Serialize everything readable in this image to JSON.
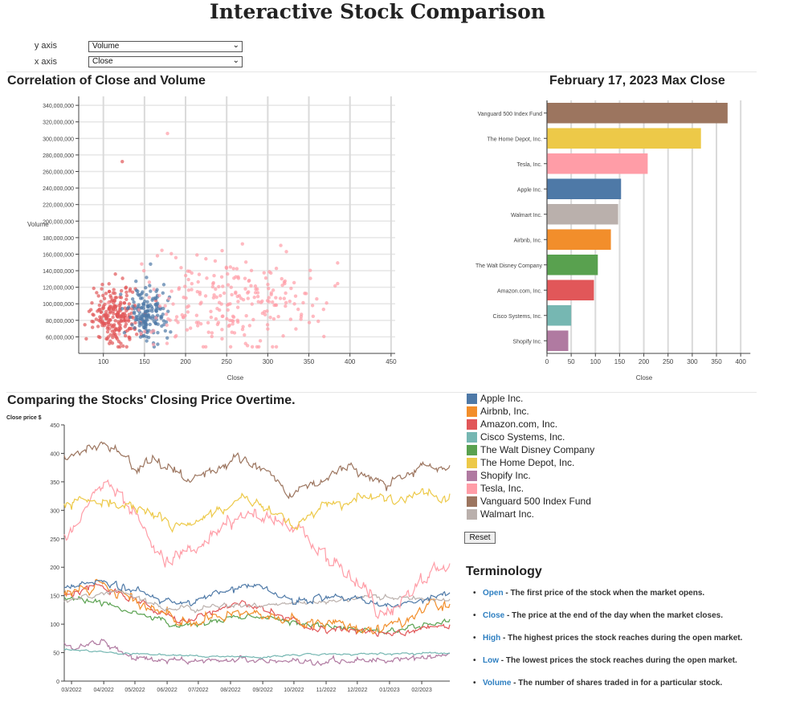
{
  "page": {
    "title": "Interactive Stock Comparison"
  },
  "controls": {
    "y_label": "y axis",
    "y_value": "Volume",
    "x_label": "x axis",
    "x_value": "Close"
  },
  "reset_label": "Reset",
  "terminology": {
    "title": "Terminology",
    "items": [
      {
        "term": "Open",
        "desc": " - The first price of the stock when the market opens."
      },
      {
        "term": "Close",
        "desc": " - The price at the end of the day when the market closes."
      },
      {
        "term": "High",
        "desc": " - The highest prices the stock reaches during the open market."
      },
      {
        "term": "Low",
        "desc": " - The lowest prices the stock reaches during the open market."
      },
      {
        "term": "Volume",
        "desc": " - The number of shares traded in for a particular stock."
      }
    ]
  },
  "legend": [
    {
      "name": "Apple Inc.",
      "color": "#4e79a7"
    },
    {
      "name": "Airbnb, Inc.",
      "color": "#f28e2b"
    },
    {
      "name": "Amazon.com, Inc.",
      "color": "#e15759"
    },
    {
      "name": "Cisco Systems, Inc.",
      "color": "#76b7b2"
    },
    {
      "name": "The Walt Disney Company",
      "color": "#59a14f"
    },
    {
      "name": "The Home Depot, Inc.",
      "color": "#edc948"
    },
    {
      "name": "Shopify Inc.",
      "color": "#b07aa1"
    },
    {
      "name": "Tesla, Inc.",
      "color": "#ff9da7"
    },
    {
      "name": "Vanguard 500 Index Fund",
      "color": "#9c755f"
    },
    {
      "name": "Walmart Inc.",
      "color": "#bab0ac"
    }
  ],
  "chart_data": [
    {
      "type": "scatter",
      "title": "Correlation of Close and Volume",
      "xlabel": "Close",
      "ylabel": "Volume",
      "xlim": [
        70,
        455
      ],
      "ylim": [
        40000000,
        345000000
      ],
      "xticks": [
        100,
        150,
        200,
        250,
        300,
        350,
        400,
        450
      ],
      "yticks": [
        60000000,
        80000000,
        100000000,
        120000000,
        140000000,
        160000000,
        180000000,
        200000000,
        220000000,
        240000000,
        260000000,
        280000000,
        300000000,
        320000000,
        340000000
      ],
      "grid": true,
      "clusters": [
        {
          "series": "Amazon.com, Inc.",
          "color": "#e15759",
          "n": 230,
          "x_mean": 115,
          "x_sd": 14,
          "y_mean": 80000000,
          "y_sd": 22000000
        },
        {
          "series": "Apple Inc.",
          "color": "#4e79a7",
          "n": 170,
          "x_mean": 155,
          "x_sd": 12,
          "y_mean": 85000000,
          "y_sd": 20000000
        },
        {
          "series": "Tesla, Inc.",
          "color": "#ff9da7",
          "n": 250,
          "x_mean": 255,
          "x_sd": 55,
          "y_mean": 95000000,
          "y_sd": 35000000
        }
      ],
      "notable_points": [
        {
          "series": "Tesla, Inc.",
          "x": 178,
          "y": 306000000
        },
        {
          "series": "Amazon.com, Inc.",
          "x": 123,
          "y": 272000000
        }
      ]
    },
    {
      "type": "bar",
      "orientation": "horizontal",
      "title": "February 17, 2023 Max Close",
      "xlabel": "Close",
      "xlim": [
        0,
        420
      ],
      "xticks": [
        0,
        50,
        100,
        150,
        200,
        250,
        300,
        350,
        400
      ],
      "categories": [
        "Vanguard 500 Index Fund",
        "The Home Depot, Inc.",
        "Tesla, Inc.",
        "Apple Inc.",
        "Walmart Inc.",
        "Airbnb, Inc.",
        "The Walt Disney Company",
        "Amazon.com, Inc.",
        "Cisco Systems, Inc.",
        "Shopify Inc."
      ],
      "values": [
        373,
        318,
        208,
        153,
        147,
        132,
        105,
        97,
        50,
        44
      ],
      "colors": [
        "#9c755f",
        "#edc948",
        "#ff9da7",
        "#4e79a7",
        "#bab0ac",
        "#f28e2b",
        "#59a14f",
        "#e15759",
        "#76b7b2",
        "#b07aa1"
      ]
    },
    {
      "type": "line",
      "title": "Comparing the Stocks' Closing Price Overtime.",
      "ylabel": "Close price $",
      "ylim": [
        0,
        450
      ],
      "yticks": [
        0,
        50,
        100,
        150,
        200,
        250,
        300,
        350,
        400,
        450
      ],
      "x_ticks": [
        "03/2022",
        "04/2022",
        "05/2022",
        "06/2022",
        "07/2022",
        "08/2022",
        "09/2022",
        "10/2022",
        "11/2022",
        "12/2022",
        "01/2023",
        "02/2023"
      ],
      "x_range": [
        "2022-02-22",
        "2023-02-28"
      ],
      "series": [
        {
          "name": "Vanguard 500 Index Fund",
          "color": "#9c755f",
          "volatility": 4.5,
          "dates": [
            "2022-02-22",
            "2022-04-01",
            "2022-05-01",
            "2022-06-01",
            "2022-06-20",
            "2022-08-15",
            "2022-09-30",
            "2022-11-15",
            "2023-01-01",
            "2023-02-01",
            "2023-02-28"
          ],
          "values": [
            395,
            420,
            380,
            385,
            350,
            395,
            330,
            370,
            350,
            380,
            375
          ]
        },
        {
          "name": "The Home Depot, Inc.",
          "color": "#edc948",
          "volatility": 4.5,
          "dates": [
            "2022-02-22",
            "2022-03-20",
            "2022-04-15",
            "2022-05-15",
            "2022-06-20",
            "2022-08-15",
            "2022-09-30",
            "2022-11-15",
            "2023-01-01",
            "2023-02-01",
            "2023-02-28"
          ],
          "values": [
            310,
            320,
            305,
            295,
            270,
            320,
            275,
            315,
            320,
            330,
            318
          ]
        },
        {
          "name": "Tesla, Inc.",
          "color": "#ff9da7",
          "volatility": 7,
          "dates": [
            "2022-02-22",
            "2022-03-10",
            "2022-04-03",
            "2022-05-01",
            "2022-05-24",
            "2022-07-01",
            "2022-08-16",
            "2022-09-25",
            "2022-10-30",
            "2022-12-01",
            "2022-12-27",
            "2023-01-31",
            "2023-02-28"
          ],
          "values": [
            255,
            285,
            370,
            290,
            215,
            235,
            300,
            285,
            225,
            180,
            115,
            170,
            205
          ]
        },
        {
          "name": "Apple Inc.",
          "color": "#4e79a7",
          "volatility": 2.8,
          "dates": [
            "2022-02-22",
            "2022-04-01",
            "2022-06-15",
            "2022-08-15",
            "2022-10-01",
            "2022-11-15",
            "2023-01-03",
            "2023-02-28"
          ],
          "values": [
            163,
            175,
            133,
            170,
            142,
            150,
            128,
            152
          ]
        },
        {
          "name": "Walmart Inc.",
          "color": "#bab0ac",
          "volatility": 2,
          "dates": [
            "2022-02-22",
            "2022-04-15",
            "2022-06-01",
            "2022-08-01",
            "2022-10-01",
            "2022-12-01",
            "2023-02-28"
          ],
          "values": [
            138,
            158,
            125,
            130,
            135,
            148,
            143
          ]
        },
        {
          "name": "Airbnb, Inc.",
          "color": "#f28e2b",
          "volatility": 4.5,
          "dates": [
            "2022-02-22",
            "2022-04-01",
            "2022-06-15",
            "2022-08-15",
            "2022-10-01",
            "2022-12-15",
            "2023-01-15",
            "2023-02-10",
            "2023-02-28"
          ],
          "values": [
            150,
            170,
            100,
            120,
            108,
            90,
            105,
            135,
            130
          ]
        },
        {
          "name": "Amazon.com, Inc.",
          "color": "#e15759",
          "volatility": 3,
          "dates": [
            "2022-02-22",
            "2022-03-30",
            "2022-06-15",
            "2022-08-15",
            "2022-10-15",
            "2023-01-05",
            "2023-02-28"
          ],
          "values": [
            150,
            168,
            105,
            140,
            95,
            85,
            98
          ]
        },
        {
          "name": "The Walt Disney Company",
          "color": "#59a14f",
          "volatility": 2.2,
          "dates": [
            "2022-02-22",
            "2022-03-31",
            "2022-06-15",
            "2022-08-15",
            "2022-10-15",
            "2022-12-25",
            "2023-02-28"
          ],
          "values": [
            145,
            137,
            95,
            115,
            100,
            86,
            105
          ]
        },
        {
          "name": "Cisco Systems, Inc.",
          "color": "#76b7b2",
          "volatility": 0.8,
          "dates": [
            "2022-02-22",
            "2022-05-01",
            "2022-07-01",
            "2022-09-01",
            "2022-11-01",
            "2023-01-01",
            "2023-02-28"
          ],
          "values": [
            56,
            48,
            44,
            42,
            48,
            48,
            50
          ]
        },
        {
          "name": "Shopify Inc.",
          "color": "#b07aa1",
          "volatility": 2.5,
          "dates": [
            "2022-02-22",
            "2022-03-01",
            "2022-03-29",
            "2022-05-01",
            "2022-06-15",
            "2022-08-15",
            "2022-10-15",
            "2022-12-01",
            "2023-01-05",
            "2023-02-28"
          ],
          "values": [
            65,
            57,
            72,
            40,
            35,
            38,
            28,
            38,
            35,
            47
          ]
        }
      ]
    }
  ]
}
